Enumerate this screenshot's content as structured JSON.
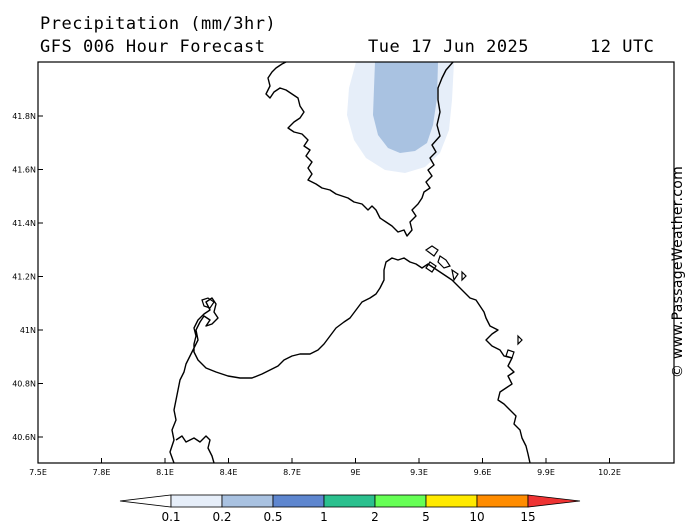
{
  "header": {
    "title": "Precipitation (mm/3hr)",
    "model": "GFS 006 Hour Forecast",
    "date": "Tue 17 Jun 2025",
    "time": "12 UTC"
  },
  "credit": "© www.PassageWeather.com",
  "axes": {
    "lat_labels": [
      "41.8N",
      "41.6N",
      "41.4N",
      "41.2N",
      "41N",
      "40.8N",
      "40.6N"
    ],
    "lon_labels": [
      "7.5E",
      "7.8E",
      "8.1E",
      "8.4E",
      "8.7E",
      "9E",
      "9.3E",
      "9.6E",
      "9.9E",
      "10.2E"
    ]
  },
  "legend": {
    "labels": [
      "0.1",
      "0.2",
      "0.5",
      "1",
      "2",
      "5",
      "10",
      "15"
    ],
    "colors": [
      "#ffffff",
      "#e6eef9",
      "#a9c2e1",
      "#5e86cf",
      "#2bc08e",
      "#66ff55",
      "#ffea00",
      "#ff8c00",
      "#ee3333"
    ]
  },
  "precip": {
    "light_color": "#e6eef9",
    "moderate_color": "#a9c2e1"
  }
}
